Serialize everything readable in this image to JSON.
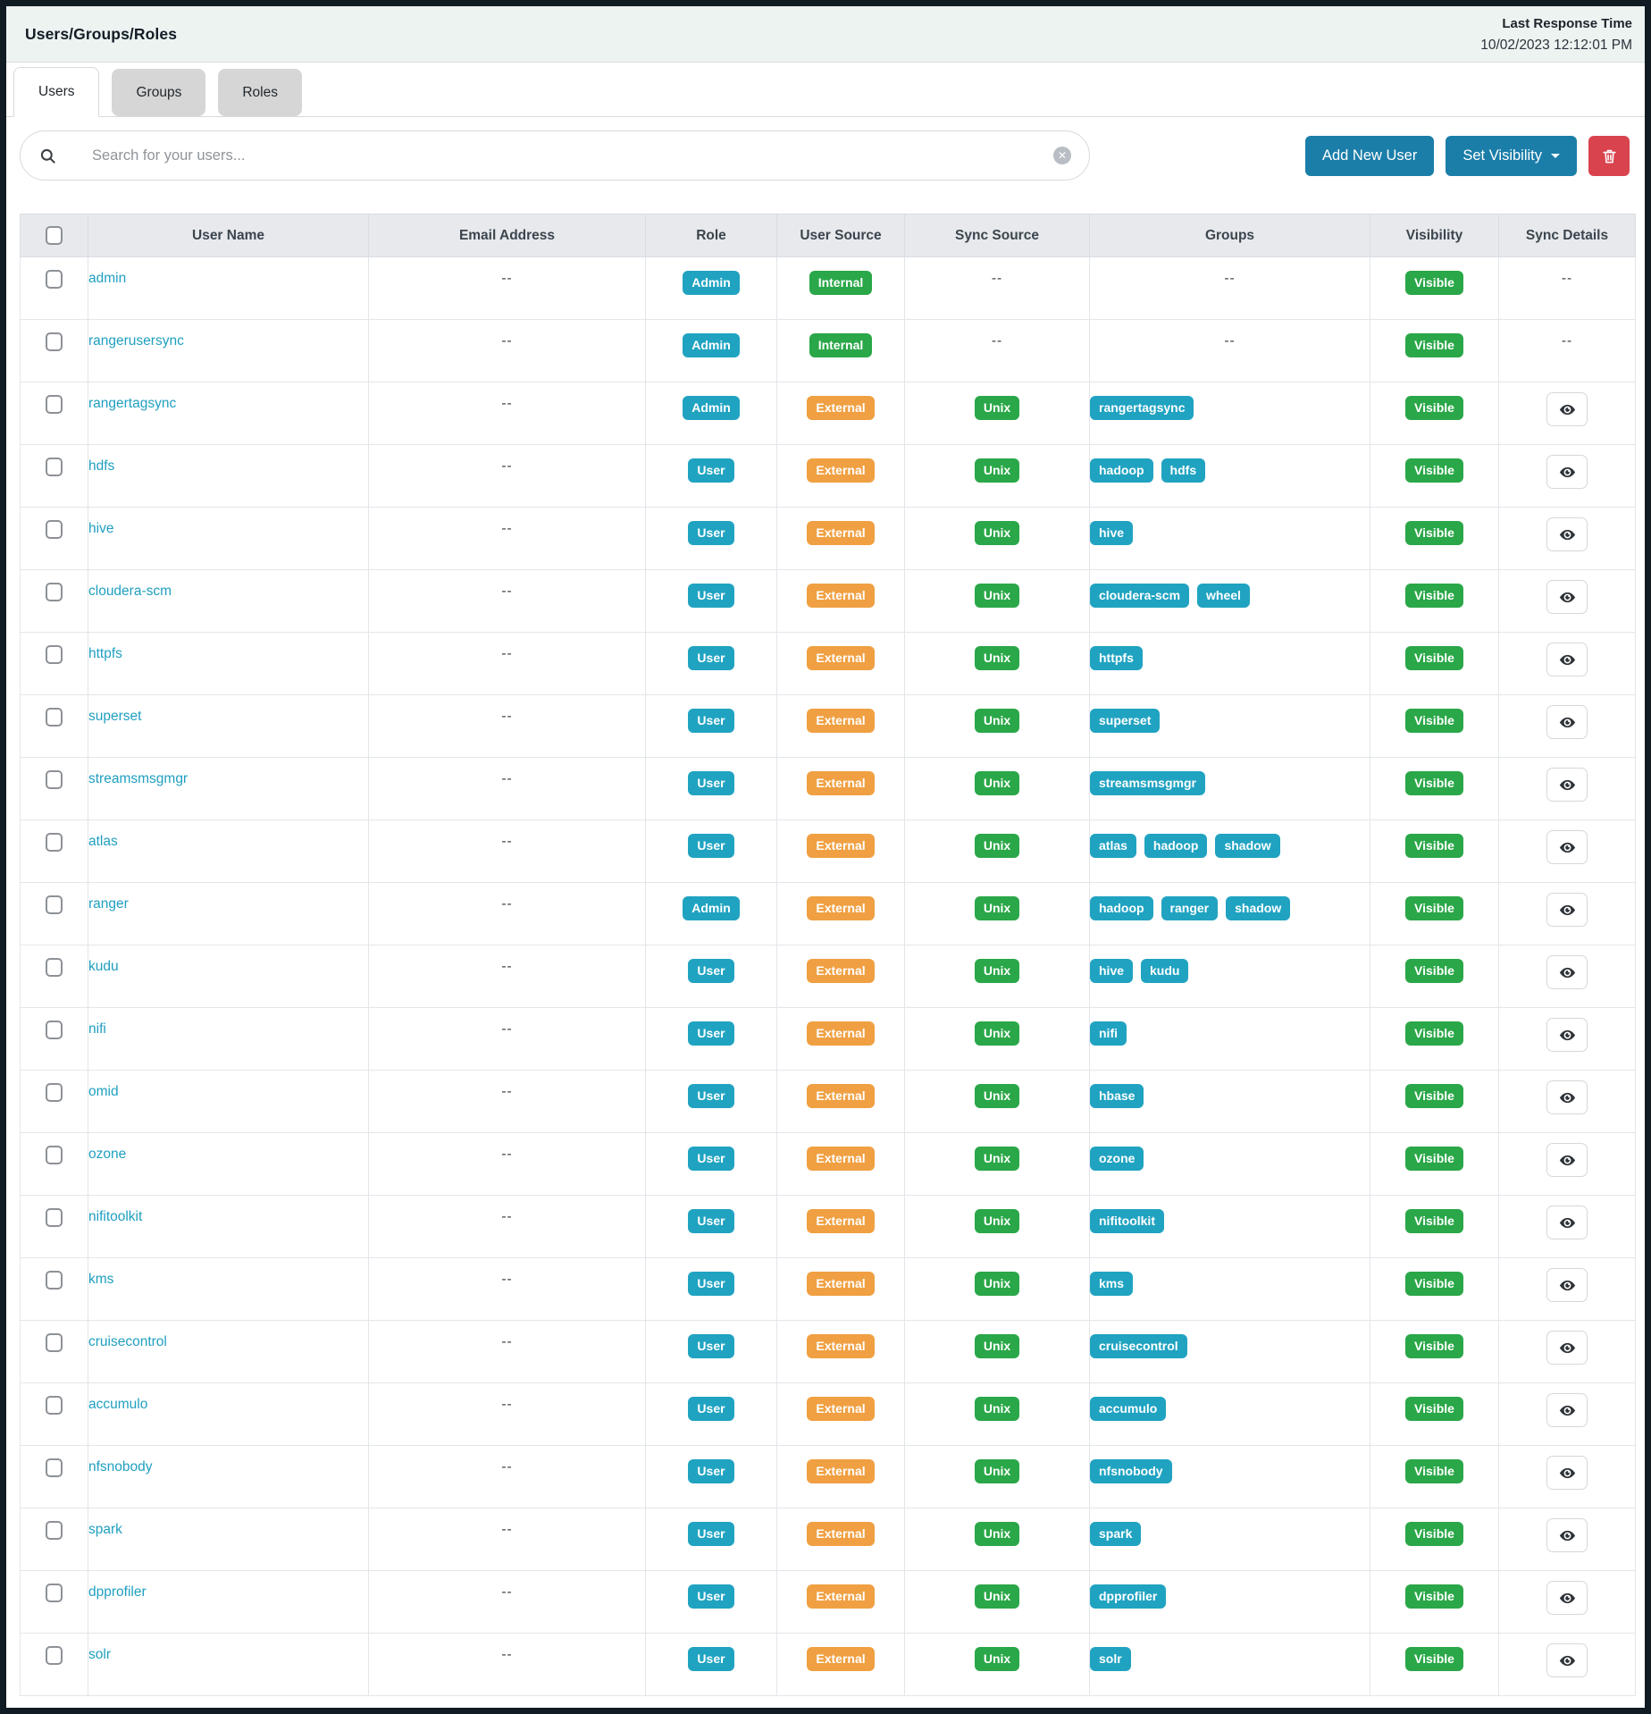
{
  "header": {
    "title": "Users/Groups/Roles",
    "last_response_label": "Last Response Time",
    "last_response_time": "10/02/2023 12:12:01 PM"
  },
  "tabs": [
    {
      "label": "Users",
      "active": true
    },
    {
      "label": "Groups",
      "active": false
    },
    {
      "label": "Roles",
      "active": false
    }
  ],
  "toolbar": {
    "search_placeholder": "Search for your users...",
    "search_icon": "magnifier-icon",
    "clear_icon": "circle-x-icon",
    "add_new_user_label": "Add New User",
    "set_visibility_label": "Set Visibility",
    "delete_icon": "trash-icon"
  },
  "colors": {
    "accent_blue": "#1b7ea9",
    "danger_red": "#d9434e",
    "badge_teal": "#20a3c1",
    "badge_green": "#2aa748",
    "badge_orange": "#f0a042",
    "link_teal": "#1f9fc0",
    "topbar_bg": "#edf3f1",
    "table_header_bg": "#e7e9ec"
  },
  "table": {
    "empty_text": "--",
    "columns": [
      "User Name",
      "Email Address",
      "Role",
      "User Source",
      "Sync Source",
      "Groups",
      "Visibility",
      "Sync Details"
    ],
    "rows": [
      {
        "name": "admin",
        "email": "--",
        "role": "Admin",
        "user_source": "Internal",
        "sync_source": "--",
        "groups": [],
        "visibility": "Visible",
        "sync_details": "--"
      },
      {
        "name": "rangerusersync",
        "email": "--",
        "role": "Admin",
        "user_source": "Internal",
        "sync_source": "--",
        "groups": [],
        "visibility": "Visible",
        "sync_details": "--"
      },
      {
        "name": "rangertagsync",
        "email": "--",
        "role": "Admin",
        "user_source": "External",
        "sync_source": "Unix",
        "groups": [
          "rangertagsync"
        ],
        "visibility": "Visible",
        "sync_details": "eye"
      },
      {
        "name": "hdfs",
        "email": "--",
        "role": "User",
        "user_source": "External",
        "sync_source": "Unix",
        "groups": [
          "hadoop",
          "hdfs"
        ],
        "visibility": "Visible",
        "sync_details": "eye"
      },
      {
        "name": "hive",
        "email": "--",
        "role": "User",
        "user_source": "External",
        "sync_source": "Unix",
        "groups": [
          "hive"
        ],
        "visibility": "Visible",
        "sync_details": "eye"
      },
      {
        "name": "cloudera-scm",
        "email": "--",
        "role": "User",
        "user_source": "External",
        "sync_source": "Unix",
        "groups": [
          "cloudera-scm",
          "wheel"
        ],
        "visibility": "Visible",
        "sync_details": "eye"
      },
      {
        "name": "httpfs",
        "email": "--",
        "role": "User",
        "user_source": "External",
        "sync_source": "Unix",
        "groups": [
          "httpfs"
        ],
        "visibility": "Visible",
        "sync_details": "eye"
      },
      {
        "name": "superset",
        "email": "--",
        "role": "User",
        "user_source": "External",
        "sync_source": "Unix",
        "groups": [
          "superset"
        ],
        "visibility": "Visible",
        "sync_details": "eye"
      },
      {
        "name": "streamsmsgmgr",
        "email": "--",
        "role": "User",
        "user_source": "External",
        "sync_source": "Unix",
        "groups": [
          "streamsmsgmgr"
        ],
        "visibility": "Visible",
        "sync_details": "eye"
      },
      {
        "name": "atlas",
        "email": "--",
        "role": "User",
        "user_source": "External",
        "sync_source": "Unix",
        "groups": [
          "atlas",
          "hadoop",
          "shadow"
        ],
        "visibility": "Visible",
        "sync_details": "eye"
      },
      {
        "name": "ranger",
        "email": "--",
        "role": "Admin",
        "user_source": "External",
        "sync_source": "Unix",
        "groups": [
          "hadoop",
          "ranger",
          "shadow"
        ],
        "visibility": "Visible",
        "sync_details": "eye"
      },
      {
        "name": "kudu",
        "email": "--",
        "role": "User",
        "user_source": "External",
        "sync_source": "Unix",
        "groups": [
          "hive",
          "kudu"
        ],
        "visibility": "Visible",
        "sync_details": "eye"
      },
      {
        "name": "nifi",
        "email": "--",
        "role": "User",
        "user_source": "External",
        "sync_source": "Unix",
        "groups": [
          "nifi"
        ],
        "visibility": "Visible",
        "sync_details": "eye"
      },
      {
        "name": "omid",
        "email": "--",
        "role": "User",
        "user_source": "External",
        "sync_source": "Unix",
        "groups": [
          "hbase"
        ],
        "visibility": "Visible",
        "sync_details": "eye"
      },
      {
        "name": "ozone",
        "email": "--",
        "role": "User",
        "user_source": "External",
        "sync_source": "Unix",
        "groups": [
          "ozone"
        ],
        "visibility": "Visible",
        "sync_details": "eye"
      },
      {
        "name": "nifitoolkit",
        "email": "--",
        "role": "User",
        "user_source": "External",
        "sync_source": "Unix",
        "groups": [
          "nifitoolkit"
        ],
        "visibility": "Visible",
        "sync_details": "eye"
      },
      {
        "name": "kms",
        "email": "--",
        "role": "User",
        "user_source": "External",
        "sync_source": "Unix",
        "groups": [
          "kms"
        ],
        "visibility": "Visible",
        "sync_details": "eye"
      },
      {
        "name": "cruisecontrol",
        "email": "--",
        "role": "User",
        "user_source": "External",
        "sync_source": "Unix",
        "groups": [
          "cruisecontrol"
        ],
        "visibility": "Visible",
        "sync_details": "eye"
      },
      {
        "name": "accumulo",
        "email": "--",
        "role": "User",
        "user_source": "External",
        "sync_source": "Unix",
        "groups": [
          "accumulo"
        ],
        "visibility": "Visible",
        "sync_details": "eye"
      },
      {
        "name": "nfsnobody",
        "email": "--",
        "role": "User",
        "user_source": "External",
        "sync_source": "Unix",
        "groups": [
          "nfsnobody"
        ],
        "visibility": "Visible",
        "sync_details": "eye"
      },
      {
        "name": "spark",
        "email": "--",
        "role": "User",
        "user_source": "External",
        "sync_source": "Unix",
        "groups": [
          "spark"
        ],
        "visibility": "Visible",
        "sync_details": "eye"
      },
      {
        "name": "dpprofiler",
        "email": "--",
        "role": "User",
        "user_source": "External",
        "sync_source": "Unix",
        "groups": [
          "dpprofiler"
        ],
        "visibility": "Visible",
        "sync_details": "eye"
      },
      {
        "name": "solr",
        "email": "--",
        "role": "User",
        "user_source": "External",
        "sync_source": "Unix",
        "groups": [
          "solr"
        ],
        "visibility": "Visible",
        "sync_details": "eye"
      }
    ]
  }
}
